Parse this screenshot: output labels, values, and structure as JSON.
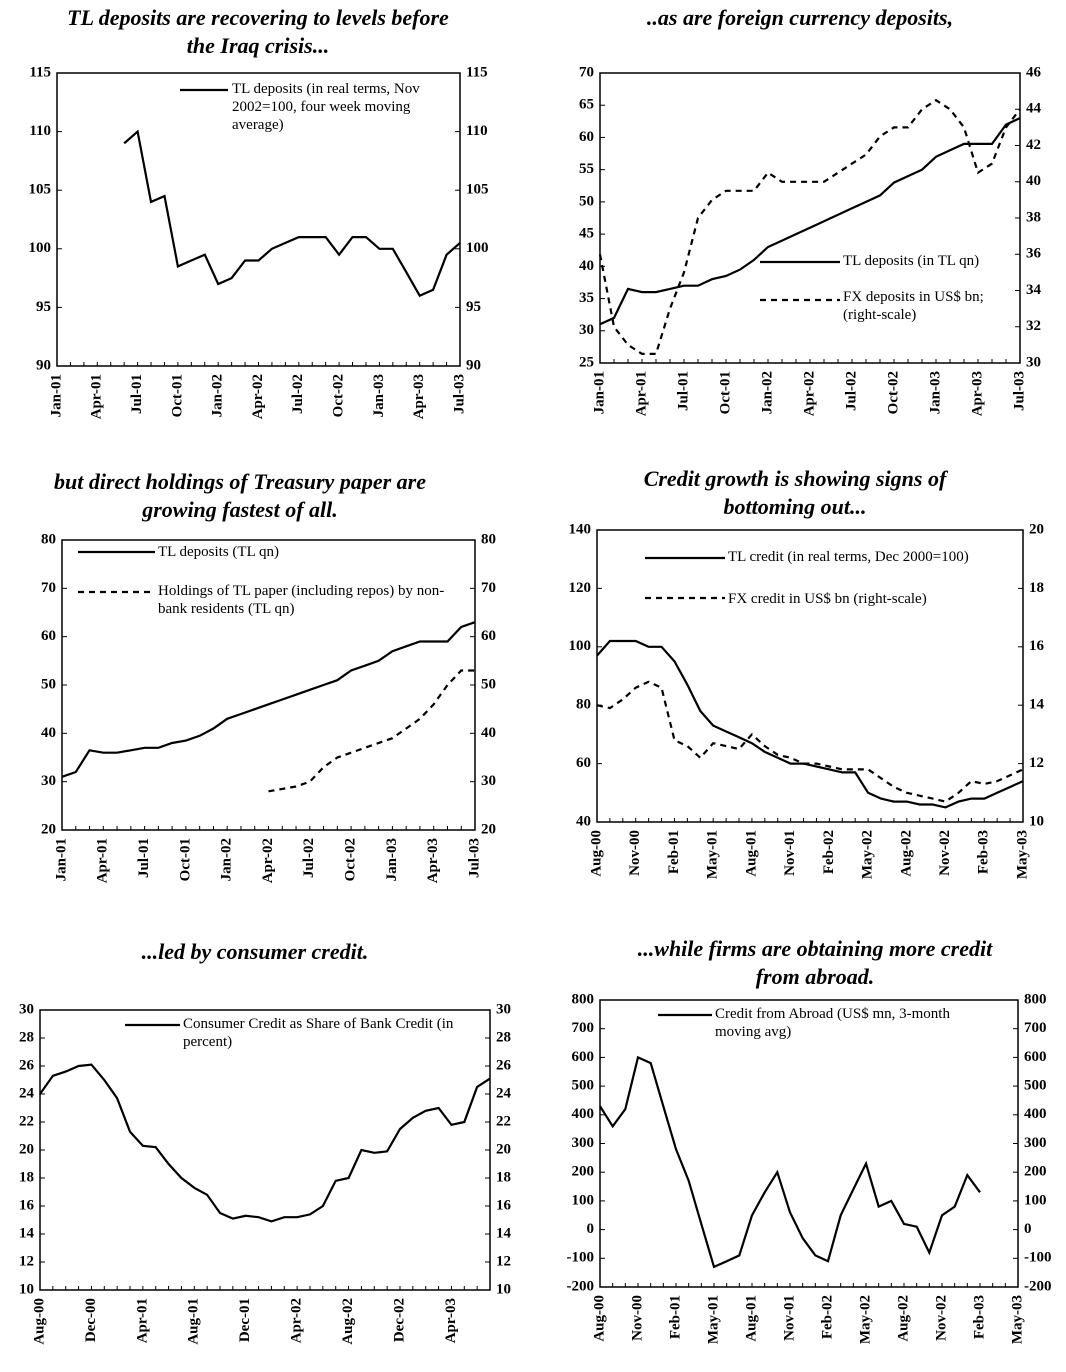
{
  "chart_data": [
    {
      "type": "line",
      "title": "TL deposits are recovering to levels before the Iraq crisis...",
      "categories": [
        "Jan-01",
        null,
        null,
        "Apr-01",
        null,
        null,
        "Jul-01",
        null,
        null,
        "Oct-01",
        null,
        null,
        "Jan-02",
        null,
        null,
        "Apr-02",
        null,
        null,
        "Jul-02",
        null,
        null,
        "Oct-02",
        null,
        null,
        "Jan-03",
        null,
        null,
        "Apr-03",
        null,
        null,
        "Jul-03"
      ],
      "series": [
        {
          "name": "TL deposits (in real terms, Nov 2002=100, four week moving average)",
          "color": "#000000",
          "line_style": "solid",
          "values": [
            null,
            null,
            null,
            null,
            null,
            109,
            110,
            104,
            104.5,
            98.5,
            99,
            99.5,
            97,
            97.5,
            99,
            99,
            100,
            100.5,
            101,
            101,
            101,
            99.5,
            101,
            101,
            100,
            100,
            98,
            96,
            96.5,
            99.5,
            100.5
          ]
        }
      ],
      "ylim": [
        90,
        115
      ],
      "yticks": [
        90,
        95,
        100,
        105,
        110,
        115
      ],
      "y2lim": [
        90,
        115
      ],
      "y2ticks": [
        90,
        95,
        100,
        105,
        110,
        115
      ]
    },
    {
      "type": "line",
      "title": "..as are foreign currency deposits,",
      "categories": [
        "Jan-01",
        null,
        null,
        "Apr-01",
        null,
        null,
        "Jul-01",
        null,
        null,
        "Oct-01",
        null,
        null,
        "Jan-02",
        null,
        null,
        "Apr-02",
        null,
        null,
        "Jul-02",
        null,
        null,
        "Oct-02",
        null,
        null,
        "Jan-03",
        null,
        null,
        "Apr-03",
        null,
        null,
        "Jul-03"
      ],
      "series": [
        {
          "name": "TL deposits (in TL qn)",
          "color": "#000000",
          "line_style": "solid",
          "values": [
            31,
            32,
            36.5,
            36,
            36,
            36.5,
            37,
            37,
            38,
            38.5,
            39.5,
            41,
            43,
            44,
            45,
            46,
            47,
            48,
            49,
            50,
            51,
            53,
            54,
            55,
            57,
            58,
            59,
            59,
            59,
            62,
            63
          ]
        },
        {
          "name": "FX deposits in US$ bn; (right-scale)",
          "color": "#000000",
          "line_style": "dashed",
          "axis": "y2",
          "values": [
            36,
            32,
            31,
            30.5,
            30.5,
            33,
            35,
            38,
            39,
            39.5,
            39.5,
            39.5,
            40.5,
            40,
            40,
            40,
            40,
            40.5,
            41,
            41.5,
            42.5,
            43,
            43,
            44,
            44.5,
            44,
            43,
            40.5,
            41,
            43,
            44
          ]
        }
      ],
      "ylim": [
        25,
        70
      ],
      "yticks": [
        25,
        30,
        35,
        40,
        45,
        50,
        55,
        60,
        65,
        70
      ],
      "y2lim": [
        30,
        46
      ],
      "y2ticks": [
        30,
        32,
        34,
        36,
        38,
        40,
        42,
        44,
        46
      ]
    },
    {
      "type": "line",
      "title": "but direct holdings of Treasury paper are growing fastest of all.",
      "categories": [
        "Jan-01",
        null,
        null,
        "Apr-01",
        null,
        null,
        "Jul-01",
        null,
        null,
        "Oct-01",
        null,
        null,
        "Jan-02",
        null,
        null,
        "Apr-02",
        null,
        null,
        "Jul-02",
        null,
        null,
        "Oct-02",
        null,
        null,
        "Jan-03",
        null,
        null,
        "Apr-03",
        null,
        null,
        "Jul-03"
      ],
      "series": [
        {
          "name": "TL deposits (TL qn)",
          "color": "#000000",
          "line_style": "solid",
          "values": [
            31,
            32,
            36.5,
            36,
            36,
            36.5,
            37,
            37,
            38,
            38.5,
            39.5,
            41,
            43,
            44,
            45,
            46,
            47,
            48,
            49,
            50,
            51,
            53,
            54,
            55,
            57,
            58,
            59,
            59,
            59,
            62,
            63
          ]
        },
        {
          "name": "Holdings of TL paper (including repos) by non-bank residents (TL qn)",
          "color": "#000000",
          "line_style": "dashed",
          "values": [
            null,
            null,
            null,
            null,
            null,
            null,
            null,
            null,
            null,
            null,
            null,
            null,
            null,
            null,
            null,
            28,
            28.5,
            29,
            30,
            33,
            35,
            36,
            37,
            38,
            39,
            41,
            43,
            46,
            50,
            53,
            53
          ]
        }
      ],
      "ylim": [
        20,
        80
      ],
      "yticks": [
        20,
        30,
        40,
        50,
        60,
        70,
        80
      ],
      "y2lim": [
        20,
        80
      ],
      "y2ticks": [
        20,
        30,
        40,
        50,
        60,
        70,
        80
      ]
    },
    {
      "type": "line",
      "title": "Credit growth is showing signs of bottoming out...",
      "categories": [
        "Aug-00",
        null,
        null,
        "Nov-00",
        null,
        null,
        "Feb-01",
        null,
        null,
        "May-01",
        null,
        null,
        "Aug-01",
        null,
        null,
        "Nov-01",
        null,
        null,
        "Feb-02",
        null,
        null,
        "May-02",
        null,
        null,
        "Aug-02",
        null,
        null,
        "Nov-02",
        null,
        null,
        "Feb-03",
        null,
        null,
        "May-03"
      ],
      "series": [
        {
          "name": "TL credit (in real terms, Dec 2000=100)",
          "color": "#000000",
          "line_style": "solid",
          "values": [
            97,
            102,
            102,
            102,
            100,
            100,
            95,
            87,
            78,
            73,
            71,
            69,
            67,
            64,
            62,
            60,
            60,
            59,
            58,
            57,
            57,
            50,
            48,
            47,
            47,
            46,
            46,
            45,
            47,
            48,
            48,
            50,
            52,
            54
          ]
        },
        {
          "name": "FX credit in US$ bn (right-scale)",
          "color": "#000000",
          "line_style": "dashed",
          "axis": "y2",
          "values": [
            14,
            13.9,
            14.2,
            14.6,
            14.8,
            14.6,
            12.8,
            12.6,
            12.2,
            12.7,
            12.6,
            12.5,
            13,
            12.6,
            12.3,
            12.2,
            12.0,
            12.0,
            11.9,
            11.8,
            11.8,
            11.8,
            11.5,
            11.2,
            11.0,
            10.9,
            10.8,
            10.7,
            11.0,
            11.4,
            11.3,
            11.4,
            11.6,
            11.8
          ]
        }
      ],
      "ylim": [
        40,
        140
      ],
      "yticks": [
        40,
        60,
        80,
        100,
        120,
        140
      ],
      "y2lim": [
        10,
        20
      ],
      "y2ticks": [
        10,
        12,
        14,
        16,
        18,
        20
      ]
    },
    {
      "type": "line",
      "title": "...led by consumer credit.",
      "categories": [
        "Aug-00",
        null,
        null,
        null,
        "Dec-00",
        null,
        null,
        null,
        "Apr-01",
        null,
        null,
        null,
        "Aug-01",
        null,
        null,
        null,
        "Dec-01",
        null,
        null,
        null,
        "Apr-02",
        null,
        null,
        null,
        "Aug-02",
        null,
        null,
        null,
        "Dec-02",
        null,
        null,
        null,
        "Apr-03",
        null,
        null,
        null
      ],
      "series": [
        {
          "name": "Consumer Credit as Share of Bank Credit (in percent)",
          "color": "#000000",
          "line_style": "solid",
          "values": [
            24,
            25.3,
            25.6,
            26,
            26.1,
            25,
            23.7,
            21.3,
            20.3,
            20.2,
            19,
            18,
            17.3,
            16.8,
            15.5,
            15.1,
            15.3,
            15.2,
            14.9,
            15.2,
            15.2,
            15.4,
            16,
            17.8,
            18,
            20,
            19.8,
            19.9,
            21.5,
            22.3,
            22.8,
            23,
            21.8,
            22,
            24.5,
            25.1
          ]
        }
      ],
      "ylim": [
        10,
        30
      ],
      "yticks": [
        10,
        12,
        14,
        16,
        18,
        20,
        22,
        24,
        26,
        28,
        30
      ],
      "y2lim": [
        10,
        30
      ],
      "y2ticks": [
        10,
        12,
        14,
        16,
        18,
        20,
        22,
        24,
        26,
        28,
        30
      ]
    },
    {
      "type": "line",
      "title": "...while firms are obtaining more credit from abroad.",
      "categories": [
        "Aug-00",
        null,
        null,
        "Nov-00",
        null,
        null,
        "Feb-01",
        null,
        null,
        "May-01",
        null,
        null,
        "Aug-01",
        null,
        null,
        "Nov-01",
        null,
        null,
        "Feb-02",
        null,
        null,
        "May-02",
        null,
        null,
        "Aug-02",
        null,
        null,
        "Nov-02",
        null,
        null,
        "Feb-03",
        null,
        null,
        "May-03"
      ],
      "series": [
        {
          "name": "Credit from Abroad (US$ mn, 3-month moving avg)",
          "color": "#000000",
          "line_style": "solid",
          "values": [
            430,
            360,
            420,
            600,
            580,
            430,
            280,
            170,
            20,
            -130,
            -110,
            -90,
            50,
            130,
            200,
            60,
            -30,
            -90,
            -110,
            50,
            140,
            230,
            80,
            100,
            20,
            10,
            -80,
            50,
            80,
            190,
            130,
            null,
            null,
            null
          ]
        }
      ],
      "ylim": [
        -200,
        800
      ],
      "yticks": [
        -200,
        -100,
        0,
        100,
        200,
        300,
        400,
        500,
        600,
        700,
        800
      ],
      "y2lim": [
        -200,
        800
      ],
      "y2ticks": [
        -200,
        -100,
        0,
        100,
        200,
        300,
        400,
        500,
        600,
        700,
        800
      ]
    }
  ]
}
